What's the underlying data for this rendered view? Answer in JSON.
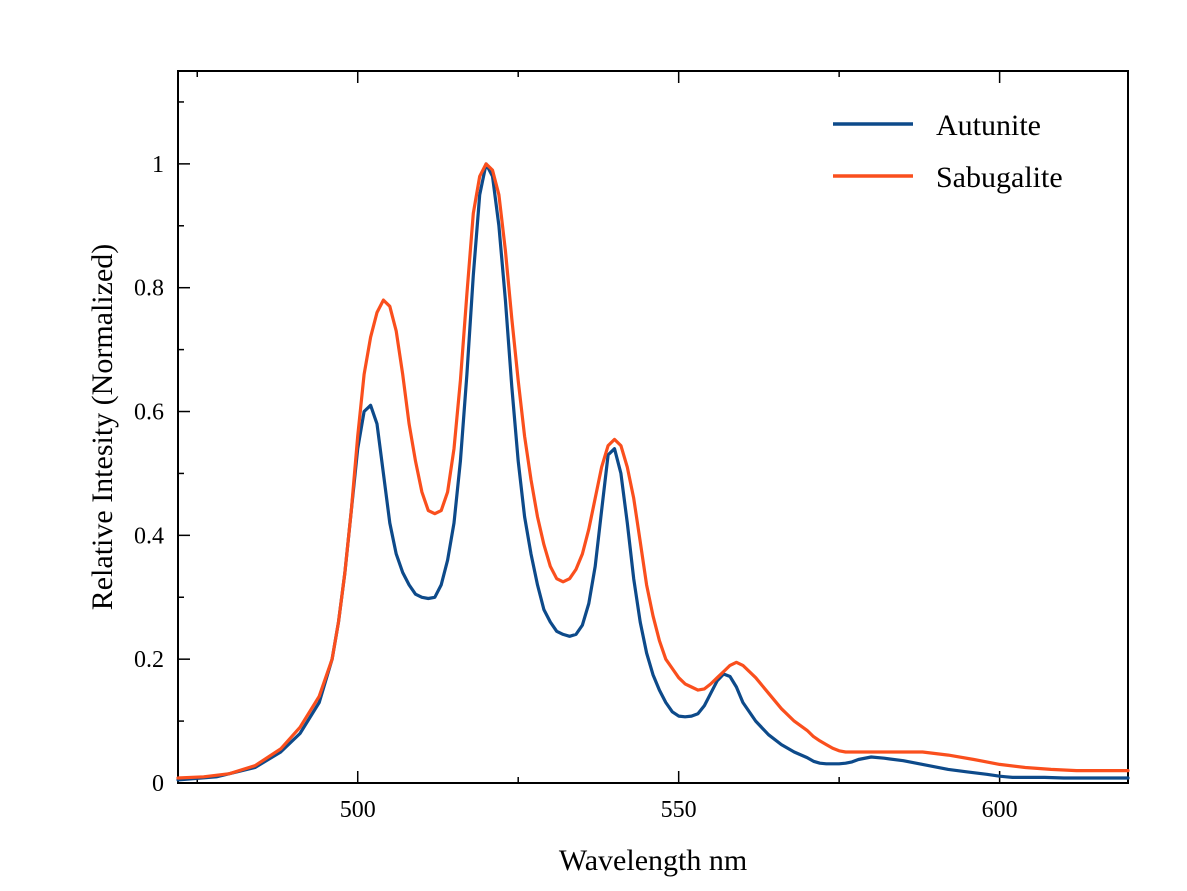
{
  "chart_data": {
    "type": "line",
    "title": "",
    "xlabel": "Wavelength nm",
    "ylabel": "Relative Intesity (Normalized)",
    "xlim": [
      472,
      620
    ],
    "ylim": [
      0,
      1.15
    ],
    "x_ticks": [
      500,
      550,
      600
    ],
    "x_tick_labels": [
      "500",
      "550",
      "600"
    ],
    "x_minor_ticks": [
      475,
      525,
      575
    ],
    "y_ticks": [
      0,
      0.2,
      0.4,
      0.6,
      0.8,
      1.0
    ],
    "y_tick_labels": [
      "0",
      "0.2",
      "0.4",
      "0.6",
      "0.8",
      "1"
    ],
    "y_minor_ticks": [
      0.1,
      0.3,
      0.5,
      0.7,
      0.9,
      1.1
    ],
    "grid": false,
    "legend_position": "top-right",
    "series": [
      {
        "name": "Autunite",
        "color": "#0d4a8a",
        "x": [
          472,
          478,
          484,
          488,
          491,
          494,
          496,
          497,
          498,
          499,
          500,
          501,
          502,
          503,
          504,
          505,
          506,
          507,
          508,
          509,
          510,
          511,
          512,
          513,
          514,
          515,
          516,
          517,
          518,
          519,
          520,
          521,
          522,
          523,
          524,
          525,
          526,
          527,
          528,
          529,
          530,
          531,
          532,
          533,
          534,
          535,
          536,
          537,
          538,
          539,
          540,
          541,
          542,
          543,
          544,
          545,
          546,
          547,
          548,
          549,
          550,
          551,
          552,
          553,
          554,
          555,
          556,
          557,
          558,
          559,
          560,
          562,
          564,
          566,
          568,
          570,
          571,
          572,
          573,
          574,
          575,
          576,
          577,
          578,
          580,
          582,
          585,
          588,
          592,
          595,
          598,
          600,
          601,
          602,
          604,
          607,
          610,
          615,
          620
        ],
        "y": [
          0.005,
          0.01,
          0.025,
          0.05,
          0.08,
          0.13,
          0.2,
          0.26,
          0.34,
          0.44,
          0.54,
          0.6,
          0.61,
          0.58,
          0.5,
          0.42,
          0.37,
          0.34,
          0.32,
          0.305,
          0.3,
          0.298,
          0.3,
          0.32,
          0.36,
          0.42,
          0.52,
          0.66,
          0.82,
          0.95,
          1.0,
          0.98,
          0.9,
          0.78,
          0.64,
          0.52,
          0.43,
          0.37,
          0.32,
          0.28,
          0.26,
          0.245,
          0.24,
          0.237,
          0.24,
          0.255,
          0.29,
          0.35,
          0.44,
          0.53,
          0.54,
          0.5,
          0.42,
          0.33,
          0.26,
          0.21,
          0.175,
          0.15,
          0.13,
          0.115,
          0.108,
          0.107,
          0.108,
          0.112,
          0.125,
          0.145,
          0.165,
          0.176,
          0.172,
          0.155,
          0.13,
          0.1,
          0.078,
          0.062,
          0.05,
          0.041,
          0.035,
          0.032,
          0.031,
          0.031,
          0.031,
          0.032,
          0.034,
          0.038,
          0.042,
          0.04,
          0.036,
          0.03,
          0.022,
          0.018,
          0.014,
          0.011,
          0.01,
          0.009,
          0.009,
          0.009,
          0.008,
          0.008,
          0.008
        ]
      },
      {
        "name": "Sabugalite",
        "color": "#fa4f1d",
        "x": [
          472,
          476,
          480,
          484,
          488,
          491,
          494,
          496,
          497,
          498,
          499,
          500,
          501,
          502,
          503,
          504,
          505,
          506,
          507,
          508,
          509,
          510,
          511,
          512,
          513,
          514,
          515,
          516,
          517,
          518,
          519,
          520,
          521,
          522,
          523,
          524,
          525,
          526,
          527,
          528,
          529,
          530,
          531,
          532,
          533,
          534,
          535,
          536,
          537,
          538,
          539,
          540,
          541,
          542,
          543,
          544,
          545,
          546,
          547,
          548,
          549,
          550,
          551,
          552,
          553,
          554,
          555,
          556,
          557,
          558,
          559,
          560,
          562,
          564,
          566,
          568,
          570,
          571,
          572,
          573,
          574,
          575,
          576,
          577,
          578,
          580,
          582,
          585,
          588,
          592,
          596,
          600,
          604,
          608,
          612,
          616,
          620
        ],
        "y": [
          0.008,
          0.01,
          0.015,
          0.028,
          0.055,
          0.09,
          0.14,
          0.2,
          0.26,
          0.34,
          0.44,
          0.56,
          0.66,
          0.72,
          0.76,
          0.78,
          0.77,
          0.73,
          0.66,
          0.58,
          0.52,
          0.47,
          0.44,
          0.435,
          0.44,
          0.47,
          0.54,
          0.65,
          0.79,
          0.92,
          0.98,
          1.0,
          0.99,
          0.95,
          0.86,
          0.75,
          0.65,
          0.56,
          0.49,
          0.43,
          0.385,
          0.35,
          0.33,
          0.325,
          0.33,
          0.345,
          0.37,
          0.41,
          0.46,
          0.51,
          0.545,
          0.555,
          0.545,
          0.51,
          0.46,
          0.39,
          0.32,
          0.27,
          0.23,
          0.2,
          0.185,
          0.17,
          0.16,
          0.155,
          0.15,
          0.152,
          0.16,
          0.17,
          0.18,
          0.19,
          0.195,
          0.19,
          0.17,
          0.145,
          0.12,
          0.1,
          0.085,
          0.075,
          0.068,
          0.062,
          0.056,
          0.052,
          0.05,
          0.05,
          0.05,
          0.05,
          0.05,
          0.05,
          0.05,
          0.045,
          0.038,
          0.03,
          0.025,
          0.022,
          0.02,
          0.02,
          0.02
        ]
      }
    ]
  }
}
